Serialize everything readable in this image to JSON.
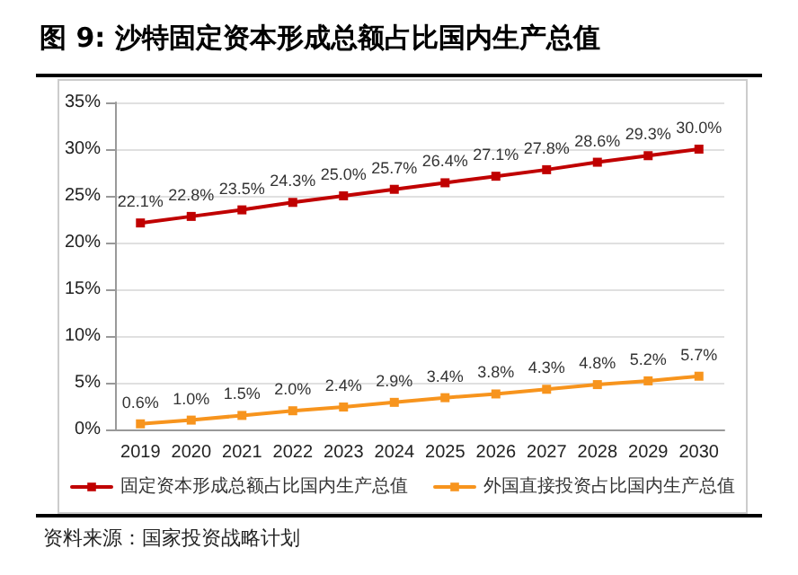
{
  "chart_data": {
    "type": "line",
    "title": "图 9: 沙特固定资本形成总额占比国内生产总值",
    "categories": [
      "2019",
      "2020",
      "2021",
      "2022",
      "2023",
      "2024",
      "2025",
      "2026",
      "2027",
      "2028",
      "2029",
      "2030"
    ],
    "series": [
      {
        "name": "固定资本形成总额占比国内生产总值",
        "color": "#c00000",
        "values": [
          22.1,
          22.8,
          23.5,
          24.3,
          25.0,
          25.7,
          26.4,
          27.1,
          27.8,
          28.6,
          29.3,
          30.0
        ],
        "value_labels": [
          "22.1%",
          "22.8%",
          "23.5%",
          "24.3%",
          "25.0%",
          "25.7%",
          "26.4%",
          "27.1%",
          "27.8%",
          "28.6%",
          "29.3%",
          "30.0%"
        ]
      },
      {
        "name": "外国直接投资占比国内生产总值",
        "color": "#f7941d",
        "values": [
          0.6,
          1.0,
          1.5,
          2.0,
          2.4,
          2.9,
          3.4,
          3.8,
          4.3,
          4.8,
          5.2,
          5.7
        ],
        "value_labels": [
          "0.6%",
          "1.0%",
          "1.5%",
          "2.0%",
          "2.4%",
          "2.9%",
          "3.4%",
          "3.8%",
          "4.3%",
          "4.8%",
          "5.2%",
          "5.7%"
        ]
      }
    ],
    "ylim": [
      0,
      35
    ],
    "yticks": [
      {
        "value": 0,
        "label": "0%"
      },
      {
        "value": 5,
        "label": "5%"
      },
      {
        "value": 10,
        "label": "10%"
      },
      {
        "value": 15,
        "label": "15%"
      },
      {
        "value": 20,
        "label": "20%"
      },
      {
        "value": 25,
        "label": "25%"
      },
      {
        "value": 30,
        "label": "30%"
      },
      {
        "value": 35,
        "label": "35%"
      }
    ],
    "grid": "y",
    "legend": "bottom",
    "marker": "square",
    "line_style": "solid",
    "annotations": [
      "资料来源：国家投资战略计划"
    ]
  }
}
